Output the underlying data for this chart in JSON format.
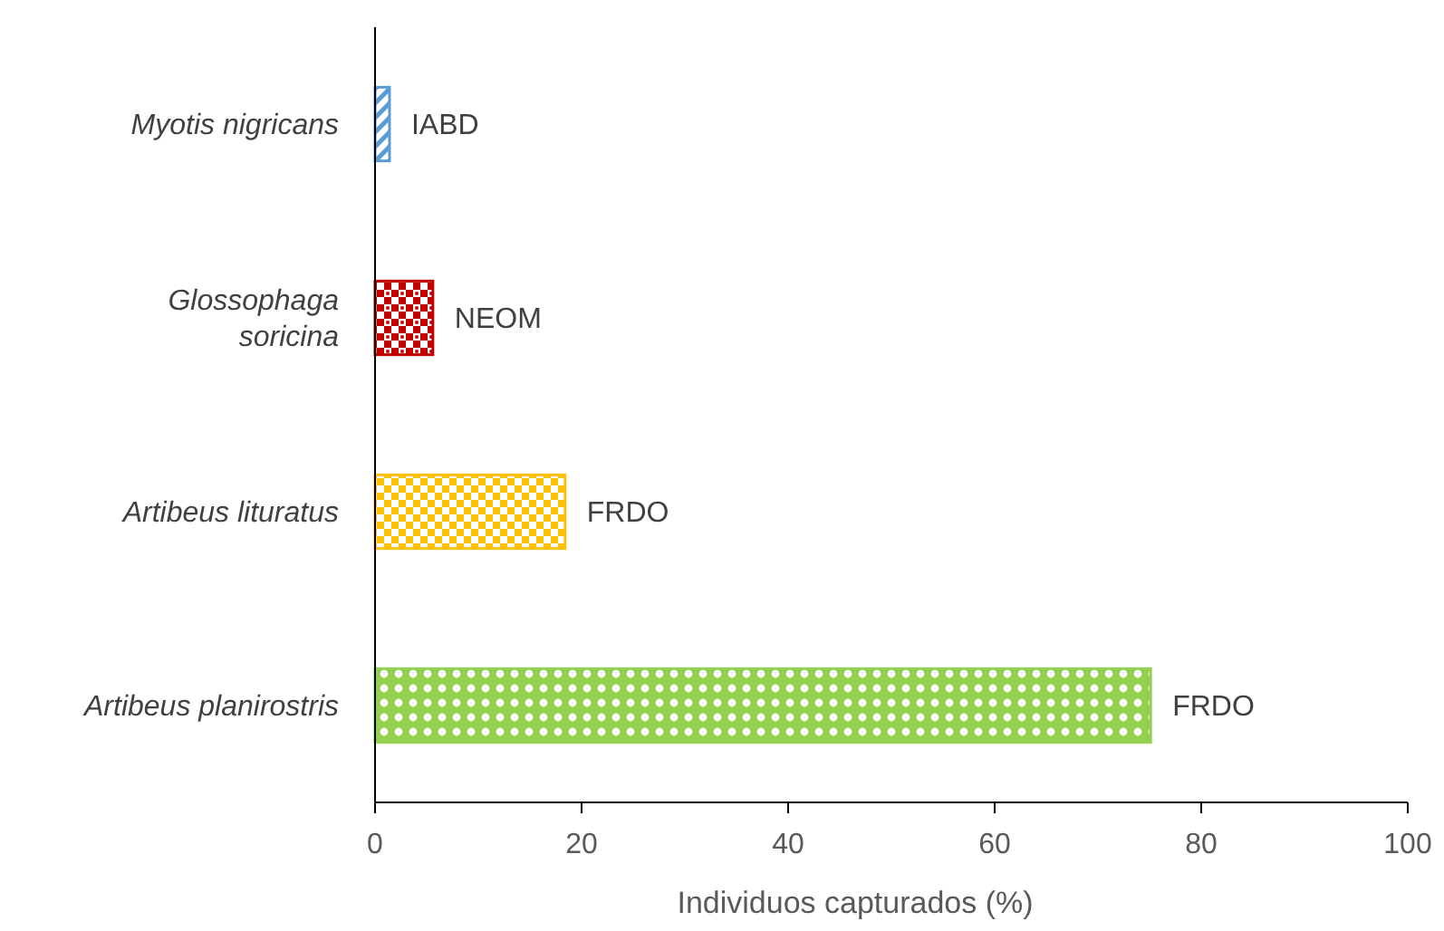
{
  "chart_data": {
    "type": "bar",
    "orientation": "horizontal",
    "xlabel": "Individuos capturados (%)",
    "categories": [
      "Myotis nigricans",
      "Glossophaga\nsoricina",
      "Artibeus lituratus",
      "Artibeus planirostris"
    ],
    "values": [
      1.4,
      5.6,
      18.4,
      75.1
    ],
    "colors": [
      "#5b9bd5",
      "#c00000",
      "#ffc000",
      "#92d050"
    ],
    "value_labels": [
      "IABD",
      "NEOM",
      "FRDO",
      "FRDO"
    ],
    "xlim": [
      0,
      100
    ],
    "xticks": [
      0,
      20,
      40,
      60,
      80,
      100
    ]
  }
}
